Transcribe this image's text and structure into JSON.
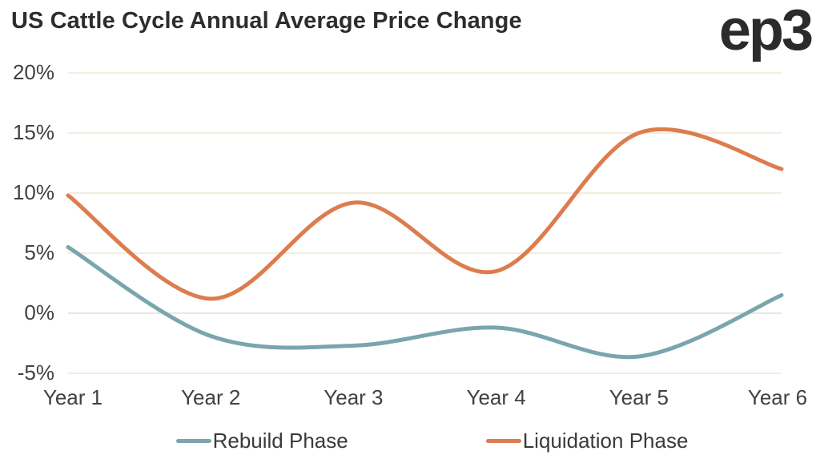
{
  "header": {
    "title": "US Cattle Cycle Annual Average Price Change",
    "logo_text": "ep3"
  },
  "chart_data": {
    "type": "line",
    "title": "US Cattle Cycle Annual Average Price Change",
    "x_categories": [
      "Year 1",
      "Year 2",
      "Year 3",
      "Year 4",
      "Year 5",
      "Year 6"
    ],
    "y_tick_labels": [
      "20%",
      "15%",
      "10%",
      "5%",
      "0%",
      "-5%"
    ],
    "y_tick_values": [
      20,
      15,
      10,
      5,
      0,
      -5
    ],
    "ylim": [
      -5,
      20
    ],
    "y_unit": "percent",
    "grid": "horizontal",
    "legend_position": "bottom",
    "curve": "smooth",
    "series": [
      {
        "name": "Rebuild Phase",
        "color": "#7aa5ad",
        "values": [
          5.5,
          -1.9,
          -2.7,
          -1.2,
          -3.6,
          1.5
        ]
      },
      {
        "name": "Liquidation Phase",
        "color": "#dd7c4e",
        "values": [
          9.8,
          1.2,
          9.2,
          3.5,
          15.0,
          12.0
        ]
      }
    ],
    "styles": {
      "grid_color": "#f2eee0",
      "zero_line_color": "#e9e7e0",
      "line_width": 5,
      "title_color": "#2d2d2d",
      "tick_text_color": "#414141"
    }
  }
}
